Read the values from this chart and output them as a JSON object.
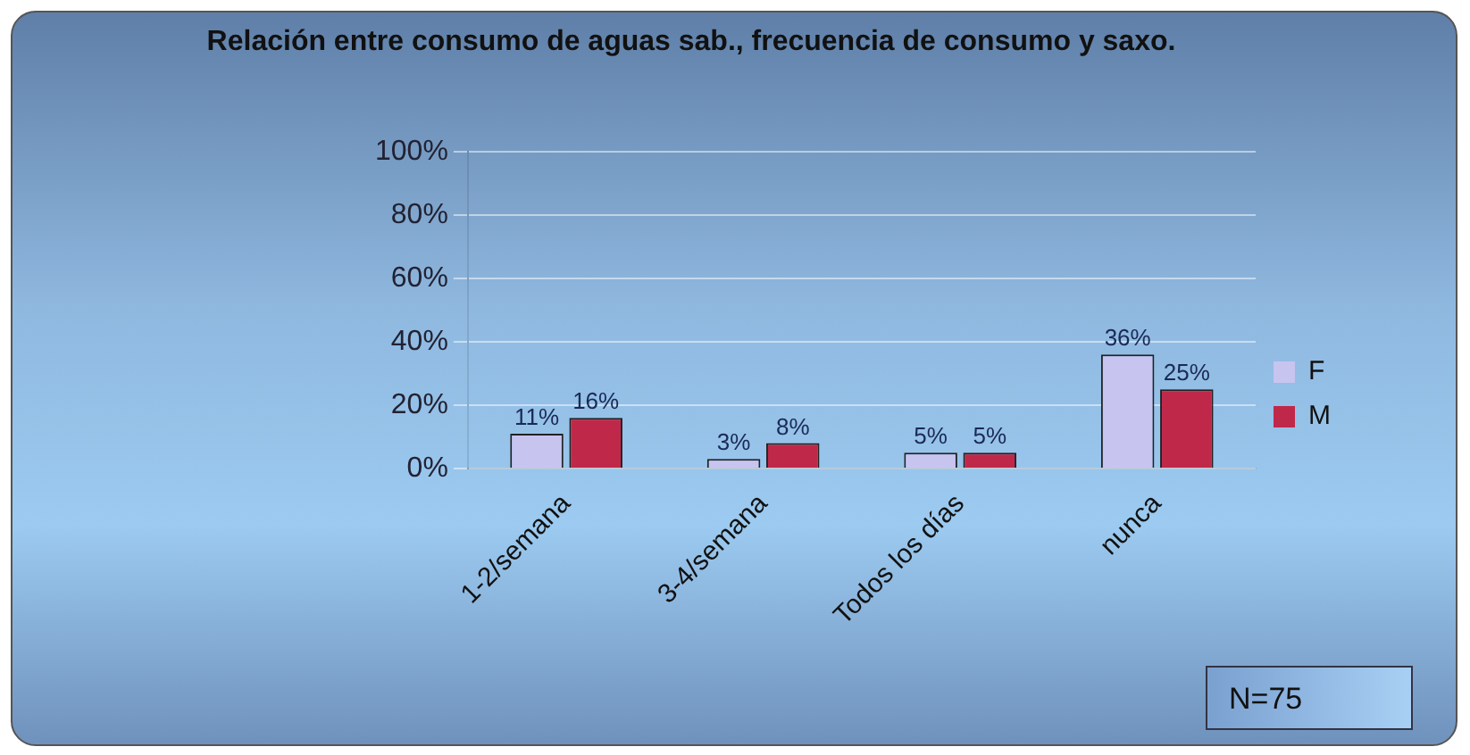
{
  "chart_data": {
    "type": "bar",
    "title": "Relación entre consumo de aguas sab., frecuencia de consumo y saxo.",
    "categories": [
      "1-2/semana",
      "3-4/semana",
      "Todos los días",
      "nunca"
    ],
    "series": [
      {
        "name": "F",
        "color": "#c8c4f0",
        "values": [
          11,
          3,
          5,
          36
        ],
        "value_labels": [
          "11%",
          "3%",
          "5%",
          "36%"
        ]
      },
      {
        "name": "M",
        "color": "#c0284a",
        "values": [
          16,
          8,
          5,
          25
        ],
        "value_labels": [
          "16%",
          "8%",
          "5%",
          "25%"
        ]
      }
    ],
    "ylim": [
      0,
      100
    ],
    "yticks": [
      {
        "value": 0,
        "label": "0%"
      },
      {
        "value": 20,
        "label": "20%"
      },
      {
        "value": 40,
        "label": "40%"
      },
      {
        "value": 60,
        "label": "60%"
      },
      {
        "value": 80,
        "label": "80%"
      },
      {
        "value": 100,
        "label": "100%"
      }
    ],
    "grid": "y",
    "legend": "right",
    "annotations": [
      "N=75"
    ]
  }
}
